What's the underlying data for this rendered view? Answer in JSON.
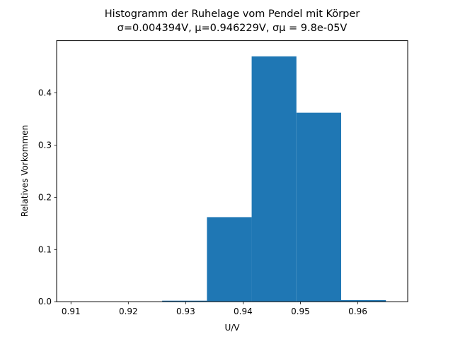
{
  "chart_data": {
    "type": "bar",
    "title": "Histogramm der Ruhelage vom Pendel mit Körper",
    "subtitle": "σ=0.004394V, μ=0.946229V, σμ = 9.8e-05V",
    "xlabel": "U/V",
    "ylabel": "Relatives Vorkommen",
    "xlim": [
      0.9075,
      0.9687
    ],
    "ylim": [
      0,
      0.5
    ],
    "x_ticks": [
      0.91,
      0.92,
      0.93,
      0.94,
      0.95,
      0.96
    ],
    "y_ticks": [
      0.0,
      0.1,
      0.2,
      0.3,
      0.4
    ],
    "grid": false,
    "color": "#1f77b4",
    "bins": [
      {
        "x0": 0.9103,
        "x1": 0.9181,
        "value": 0.0
      },
      {
        "x0": 0.9181,
        "x1": 0.9259,
        "value": 0.0
      },
      {
        "x0": 0.9259,
        "x1": 0.9337,
        "value": 0.002
      },
      {
        "x0": 0.9337,
        "x1": 0.9415,
        "value": 0.162
      },
      {
        "x0": 0.9415,
        "x1": 0.9493,
        "value": 0.47
      },
      {
        "x0": 0.9493,
        "x1": 0.9571,
        "value": 0.362
      },
      {
        "x0": 0.9571,
        "x1": 0.9649,
        "value": 0.003
      }
    ]
  }
}
